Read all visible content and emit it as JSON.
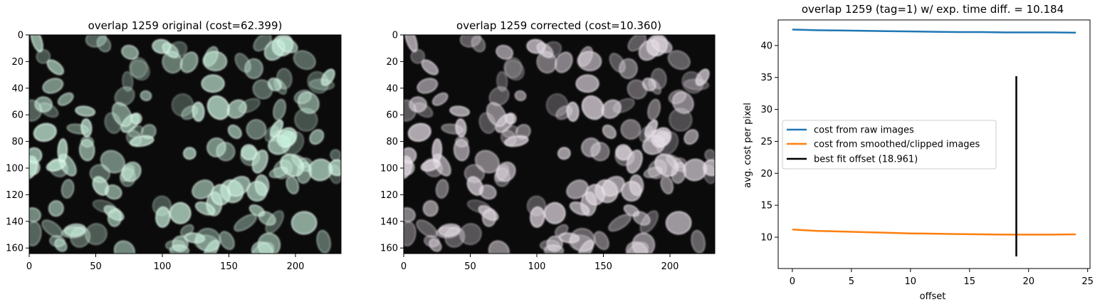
{
  "panels": [
    {
      "title": "overlap 1259 original (cost=62.399)",
      "x_ticks": [
        0,
        50,
        100,
        150,
        200
      ],
      "y_ticks": [
        0,
        20,
        40,
        60,
        80,
        100,
        120,
        140,
        160
      ],
      "image": "fluorescence-cell-nuclei-image"
    },
    {
      "title": "overlap 1259 corrected (cost=10.360)",
      "x_ticks": [
        0,
        50,
        100,
        150,
        200
      ],
      "y_ticks": [
        0,
        20,
        40,
        60,
        80,
        100,
        120,
        140,
        160
      ],
      "image": "fluorescence-cell-nuclei-image"
    }
  ],
  "colors": {
    "raw": "#1f77b4",
    "smoothed": "#ff7f0e",
    "best_fit": "#000000",
    "cells_original": "#c8f0dc",
    "cells_corrected": "#e4dce4"
  },
  "chart_data": {
    "type": "line",
    "title": "overlap 1259 (tag=1) w/ exp. time diff. = 10.184",
    "xlabel": "offset",
    "ylabel": "avg. cost per pixel",
    "xlim": [
      -1.2,
      25.2
    ],
    "ylim": [
      5.1,
      44.0
    ],
    "x_ticks": [
      0,
      5,
      10,
      15,
      20,
      25
    ],
    "y_ticks": [
      10,
      15,
      20,
      25,
      30,
      35,
      40
    ],
    "grid": false,
    "legend": "center-left",
    "series": [
      {
        "name": "cost from raw images",
        "x": [
          0,
          2,
          4,
          6,
          8,
          10,
          12,
          14,
          16,
          18,
          20,
          22,
          24
        ],
        "y": [
          42.5,
          42.4,
          42.35,
          42.3,
          42.25,
          42.2,
          42.15,
          42.1,
          42.1,
          42.05,
          42.05,
          42.05,
          42.0
        ]
      },
      {
        "name": "cost from smoothed/clipped images",
        "x": [
          0,
          2,
          4,
          6,
          8,
          10,
          12,
          14,
          16,
          18,
          20,
          22,
          24
        ],
        "y": [
          11.2,
          11.0,
          10.9,
          10.8,
          10.7,
          10.6,
          10.55,
          10.5,
          10.45,
          10.4,
          10.4,
          10.4,
          10.45
        ]
      }
    ],
    "vline": {
      "name": "best fit offset (18.961)",
      "x": 18.961,
      "y_range": [
        7.0,
        35.2
      ]
    }
  }
}
